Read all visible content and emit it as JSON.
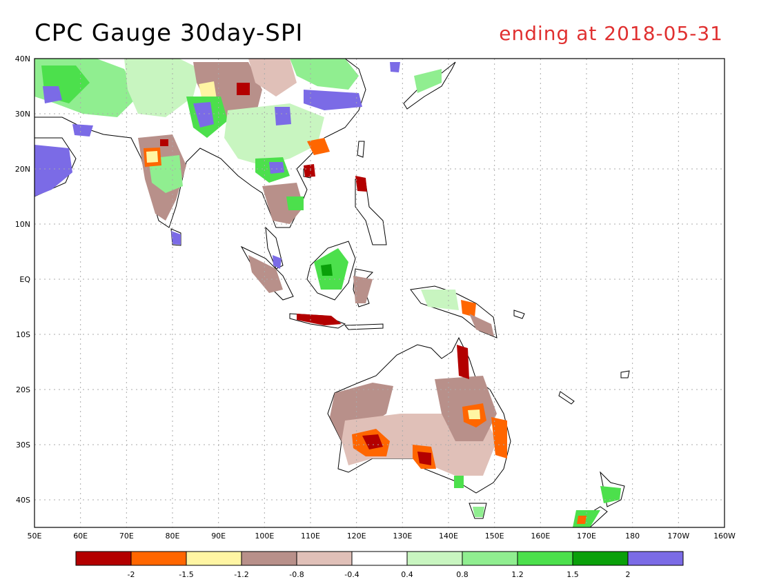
{
  "title": "CPC Gauge 30day-SPI",
  "subtitle": "ending at 2018-05-31",
  "colors": {
    "subtitle": "#e03030",
    "grid": "#aaaaaa"
  },
  "map": {
    "lon_labels": [
      "50E",
      "60E",
      "70E",
      "80E",
      "90E",
      "100E",
      "110E",
      "120E",
      "130E",
      "140E",
      "150E",
      "160E",
      "170E",
      "180",
      "170W",
      "160W"
    ],
    "lat_labels": [
      "40N",
      "30N",
      "20N",
      "10N",
      "EQ",
      "10S",
      "20S",
      "30S",
      "40S"
    ],
    "extent": {
      "lon_min": 50,
      "lon_max": 200,
      "lat_min": -45,
      "lat_max": 40
    },
    "grid": "dotted"
  },
  "colorbar": {
    "bins": [
      {
        "color": "#b30000"
      },
      {
        "color": "#ff6600"
      },
      {
        "color": "#fff5a3"
      },
      {
        "color": "#b8908a"
      },
      {
        "color": "#e0c0b8"
      },
      {
        "color": "#ffffff"
      },
      {
        "color": "#c8f5c0"
      },
      {
        "color": "#90ee90"
      },
      {
        "color": "#4ce04c"
      },
      {
        "color": "#0aa00a"
      },
      {
        "color": "#7b6be6"
      }
    ],
    "labels": [
      "-2",
      "-1.5",
      "-1.2",
      "-0.8",
      "-0.4",
      "0.4",
      "0.8",
      "1.2",
      "1.5",
      "2"
    ]
  }
}
